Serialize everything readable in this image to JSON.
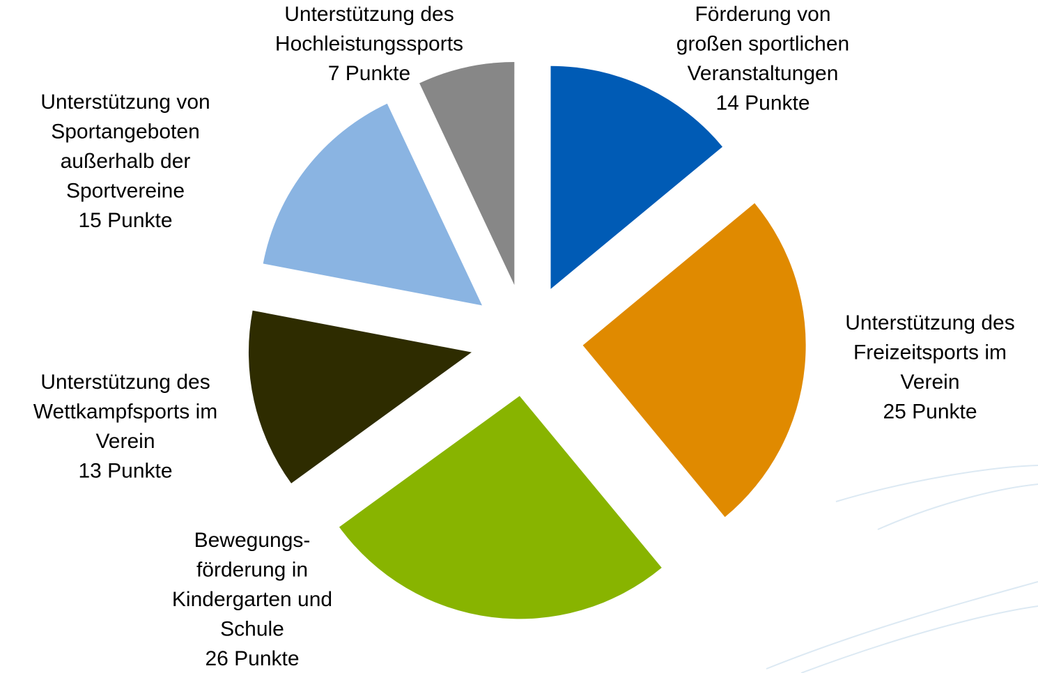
{
  "chart_data": {
    "type": "pie",
    "categories": [
      [
        "Förderung von",
        "großen sportlichen",
        "Veranstaltungen"
      ],
      [
        "Unterstützung des",
        "Freizeitsports im",
        "Verein"
      ],
      [
        "Bewegungs-",
        "förderung in",
        "Kindergarten und",
        "Schule"
      ],
      [
        "Unterstützung des",
        "Wettkampfsports im",
        "Verein"
      ],
      [
        "Unterstützung von",
        "Sportangeboten",
        "außerhalb der",
        "Sportvereine"
      ],
      [
        "Unterstützung des",
        "Hochleistungssports"
      ]
    ],
    "values": [
      14,
      25,
      26,
      13,
      15,
      7
    ],
    "value_labels": [
      "14 Punkte",
      "25 Punkte",
      "26 Punkte",
      "13 Punkte",
      "15 Punkte",
      "7 Punkte"
    ],
    "colors": [
      "#005bb5",
      "#e08a00",
      "#88b400",
      "#2e2c00",
      "#8ab4e2",
      "#878787"
    ]
  }
}
